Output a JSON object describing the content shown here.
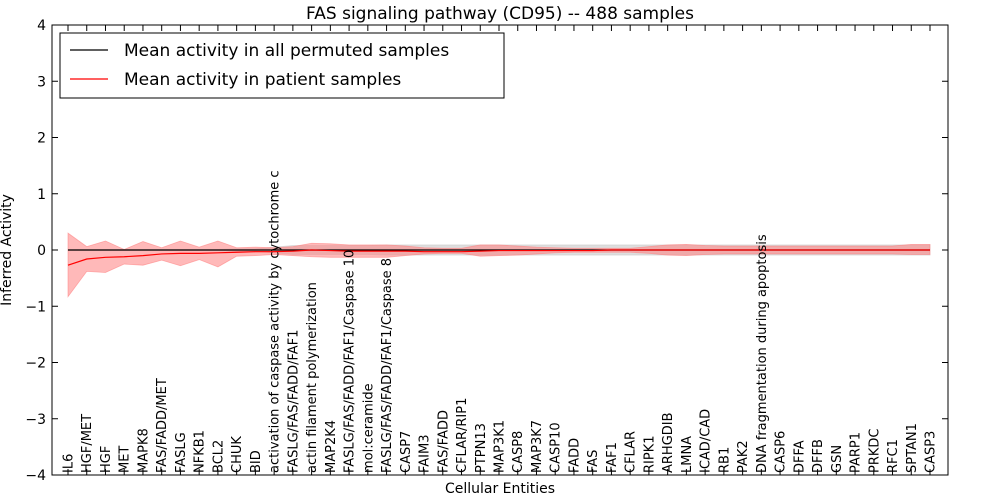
{
  "chart_data": {
    "type": "line",
    "title": "FAS signaling pathway (CD95) -- 488 samples",
    "xlabel": "Cellular Entities",
    "ylabel": "Inferred Activity",
    "ylim": [
      -4,
      4
    ],
    "yticks": [
      {
        "value": 4,
        "label": "4"
      },
      {
        "value": 3,
        "label": "3"
      },
      {
        "value": 2,
        "label": "2"
      },
      {
        "value": 1,
        "label": "1"
      },
      {
        "value": 0,
        "label": "0"
      },
      {
        "value": -1,
        "label": "−1"
      },
      {
        "value": -2,
        "label": "−2"
      },
      {
        "value": -3,
        "label": "−3"
      },
      {
        "value": -4,
        "label": "−4"
      }
    ],
    "grid": false,
    "legend_position": "top-left",
    "categories": [
      "IL6",
      "HGF/MET",
      "HGF",
      "MET",
      "MAPK8",
      "FAS/FADD/MET",
      "FASLG",
      "NFKB1",
      "BCL2",
      "CHUK",
      "BID",
      "activation of caspase activity by cytochrome c",
      "FASLG/FAS/FADD/FAF1",
      "actin filament polymerization",
      "MAP2K4",
      "FASLG/FAS/FADD/FAF1/Caspase 10",
      "mol:ceramide",
      "FASLG/FAS/FADD/FAF1/Caspase 8",
      "CASP7",
      "FAIM3",
      "FAS/FADD",
      "CFLAR/RIP1",
      "PTPN13",
      "MAP3K1",
      "CASP8",
      "MAP3K7",
      "CASP10",
      "FADD",
      "FAS",
      "FAF1",
      "CFLAR",
      "RIPK1",
      "ARHGDIB",
      "LMNA",
      "ICAD/CAD",
      "RB1",
      "PAK2",
      "DNA fragmentation during apoptosis",
      "CASP6",
      "DFFA",
      "DFFB",
      "GSN",
      "PARP1",
      "PRKDC",
      "RFC1",
      "SPTAN1",
      "CASP3"
    ],
    "series": [
      {
        "name": "Mean activity in all permuted samples",
        "color": "#000000",
        "values": [
          0,
          0,
          0,
          0,
          0,
          0,
          0,
          0,
          0,
          0,
          0,
          0,
          0,
          0,
          0,
          0,
          0,
          0,
          0,
          0,
          0,
          0,
          0,
          0,
          0,
          0,
          0,
          0,
          0,
          0,
          0,
          0,
          0,
          0,
          0,
          0,
          0,
          0,
          0,
          0,
          0,
          0,
          0,
          0,
          0,
          0,
          0
        ],
        "band_lower": [
          -0.01,
          -0.01,
          -0.01,
          -0.01,
          -0.01,
          -0.01,
          -0.01,
          -0.01,
          -0.01,
          -0.02,
          -0.02,
          -0.05,
          -0.08,
          -0.08,
          -0.08,
          -0.08,
          -0.08,
          -0.09,
          -0.09,
          -0.09,
          -0.09,
          -0.09,
          -0.09,
          -0.09,
          -0.09,
          -0.09,
          -0.09,
          -0.09,
          -0.09,
          -0.09,
          -0.09,
          -0.09,
          -0.09,
          -0.09,
          -0.09,
          -0.09,
          -0.09,
          -0.09,
          -0.09,
          -0.09,
          -0.09,
          -0.09,
          -0.09,
          -0.09,
          -0.09,
          -0.09,
          -0.09
        ],
        "band_upper": [
          0.01,
          0.01,
          0.01,
          0.01,
          0.01,
          0.01,
          0.01,
          0.01,
          0.01,
          0.02,
          0.02,
          0.05,
          0.08,
          0.08,
          0.08,
          0.08,
          0.08,
          0.09,
          0.09,
          0.09,
          0.09,
          0.09,
          0.09,
          0.09,
          0.09,
          0.09,
          0.09,
          0.09,
          0.09,
          0.09,
          0.09,
          0.09,
          0.09,
          0.09,
          0.09,
          0.09,
          0.09,
          0.09,
          0.09,
          0.09,
          0.09,
          0.09,
          0.09,
          0.09,
          0.09,
          0.09,
          0.09
        ],
        "band_color": "#c8c8c8"
      },
      {
        "name": "Mean activity in patient samples",
        "color": "#ff0000",
        "values": [
          -0.27,
          -0.16,
          -0.13,
          -0.12,
          -0.1,
          -0.07,
          -0.06,
          -0.06,
          -0.05,
          -0.04,
          -0.03,
          -0.03,
          -0.02,
          0,
          -0.01,
          -0.02,
          -0.02,
          -0.02,
          -0.02,
          -0.03,
          -0.03,
          -0.03,
          -0.02,
          -0.01,
          -0.01,
          -0.01,
          -0.01,
          -0.01,
          -0.01,
          0,
          0,
          0,
          0,
          0,
          0,
          0,
          0,
          0,
          0,
          0,
          0,
          0,
          0,
          0,
          0,
          0,
          0
        ],
        "band_lower": [
          -0.83,
          -0.38,
          -0.4,
          -0.25,
          -0.27,
          -0.18,
          -0.28,
          -0.17,
          -0.3,
          -0.11,
          -0.1,
          -0.08,
          -0.1,
          -0.12,
          -0.13,
          -0.13,
          -0.13,
          -0.13,
          -0.1,
          -0.07,
          -0.06,
          -0.06,
          -0.11,
          -0.1,
          -0.09,
          -0.07,
          -0.05,
          -0.04,
          -0.04,
          -0.04,
          -0.04,
          -0.06,
          -0.09,
          -0.1,
          -0.08,
          -0.07,
          -0.07,
          -0.07,
          -0.07,
          -0.07,
          -0.07,
          -0.07,
          -0.07,
          -0.07,
          -0.07,
          -0.08,
          -0.08
        ],
        "band_upper": [
          0.3,
          0.06,
          0.16,
          0.01,
          0.15,
          0.04,
          0.16,
          0.05,
          0.16,
          0.04,
          0.05,
          0.04,
          0.06,
          0.12,
          0.11,
          0.09,
          0.09,
          0.09,
          0.07,
          0.04,
          0.03,
          0.03,
          0.09,
          0.09,
          0.07,
          0.05,
          0.04,
          0.03,
          0.03,
          0.03,
          0.03,
          0.06,
          0.09,
          0.1,
          0.08,
          0.07,
          0.07,
          0.07,
          0.07,
          0.07,
          0.07,
          0.07,
          0.07,
          0.07,
          0.07,
          0.1,
          0.1
        ],
        "band_color": "#ff8080"
      }
    ]
  }
}
